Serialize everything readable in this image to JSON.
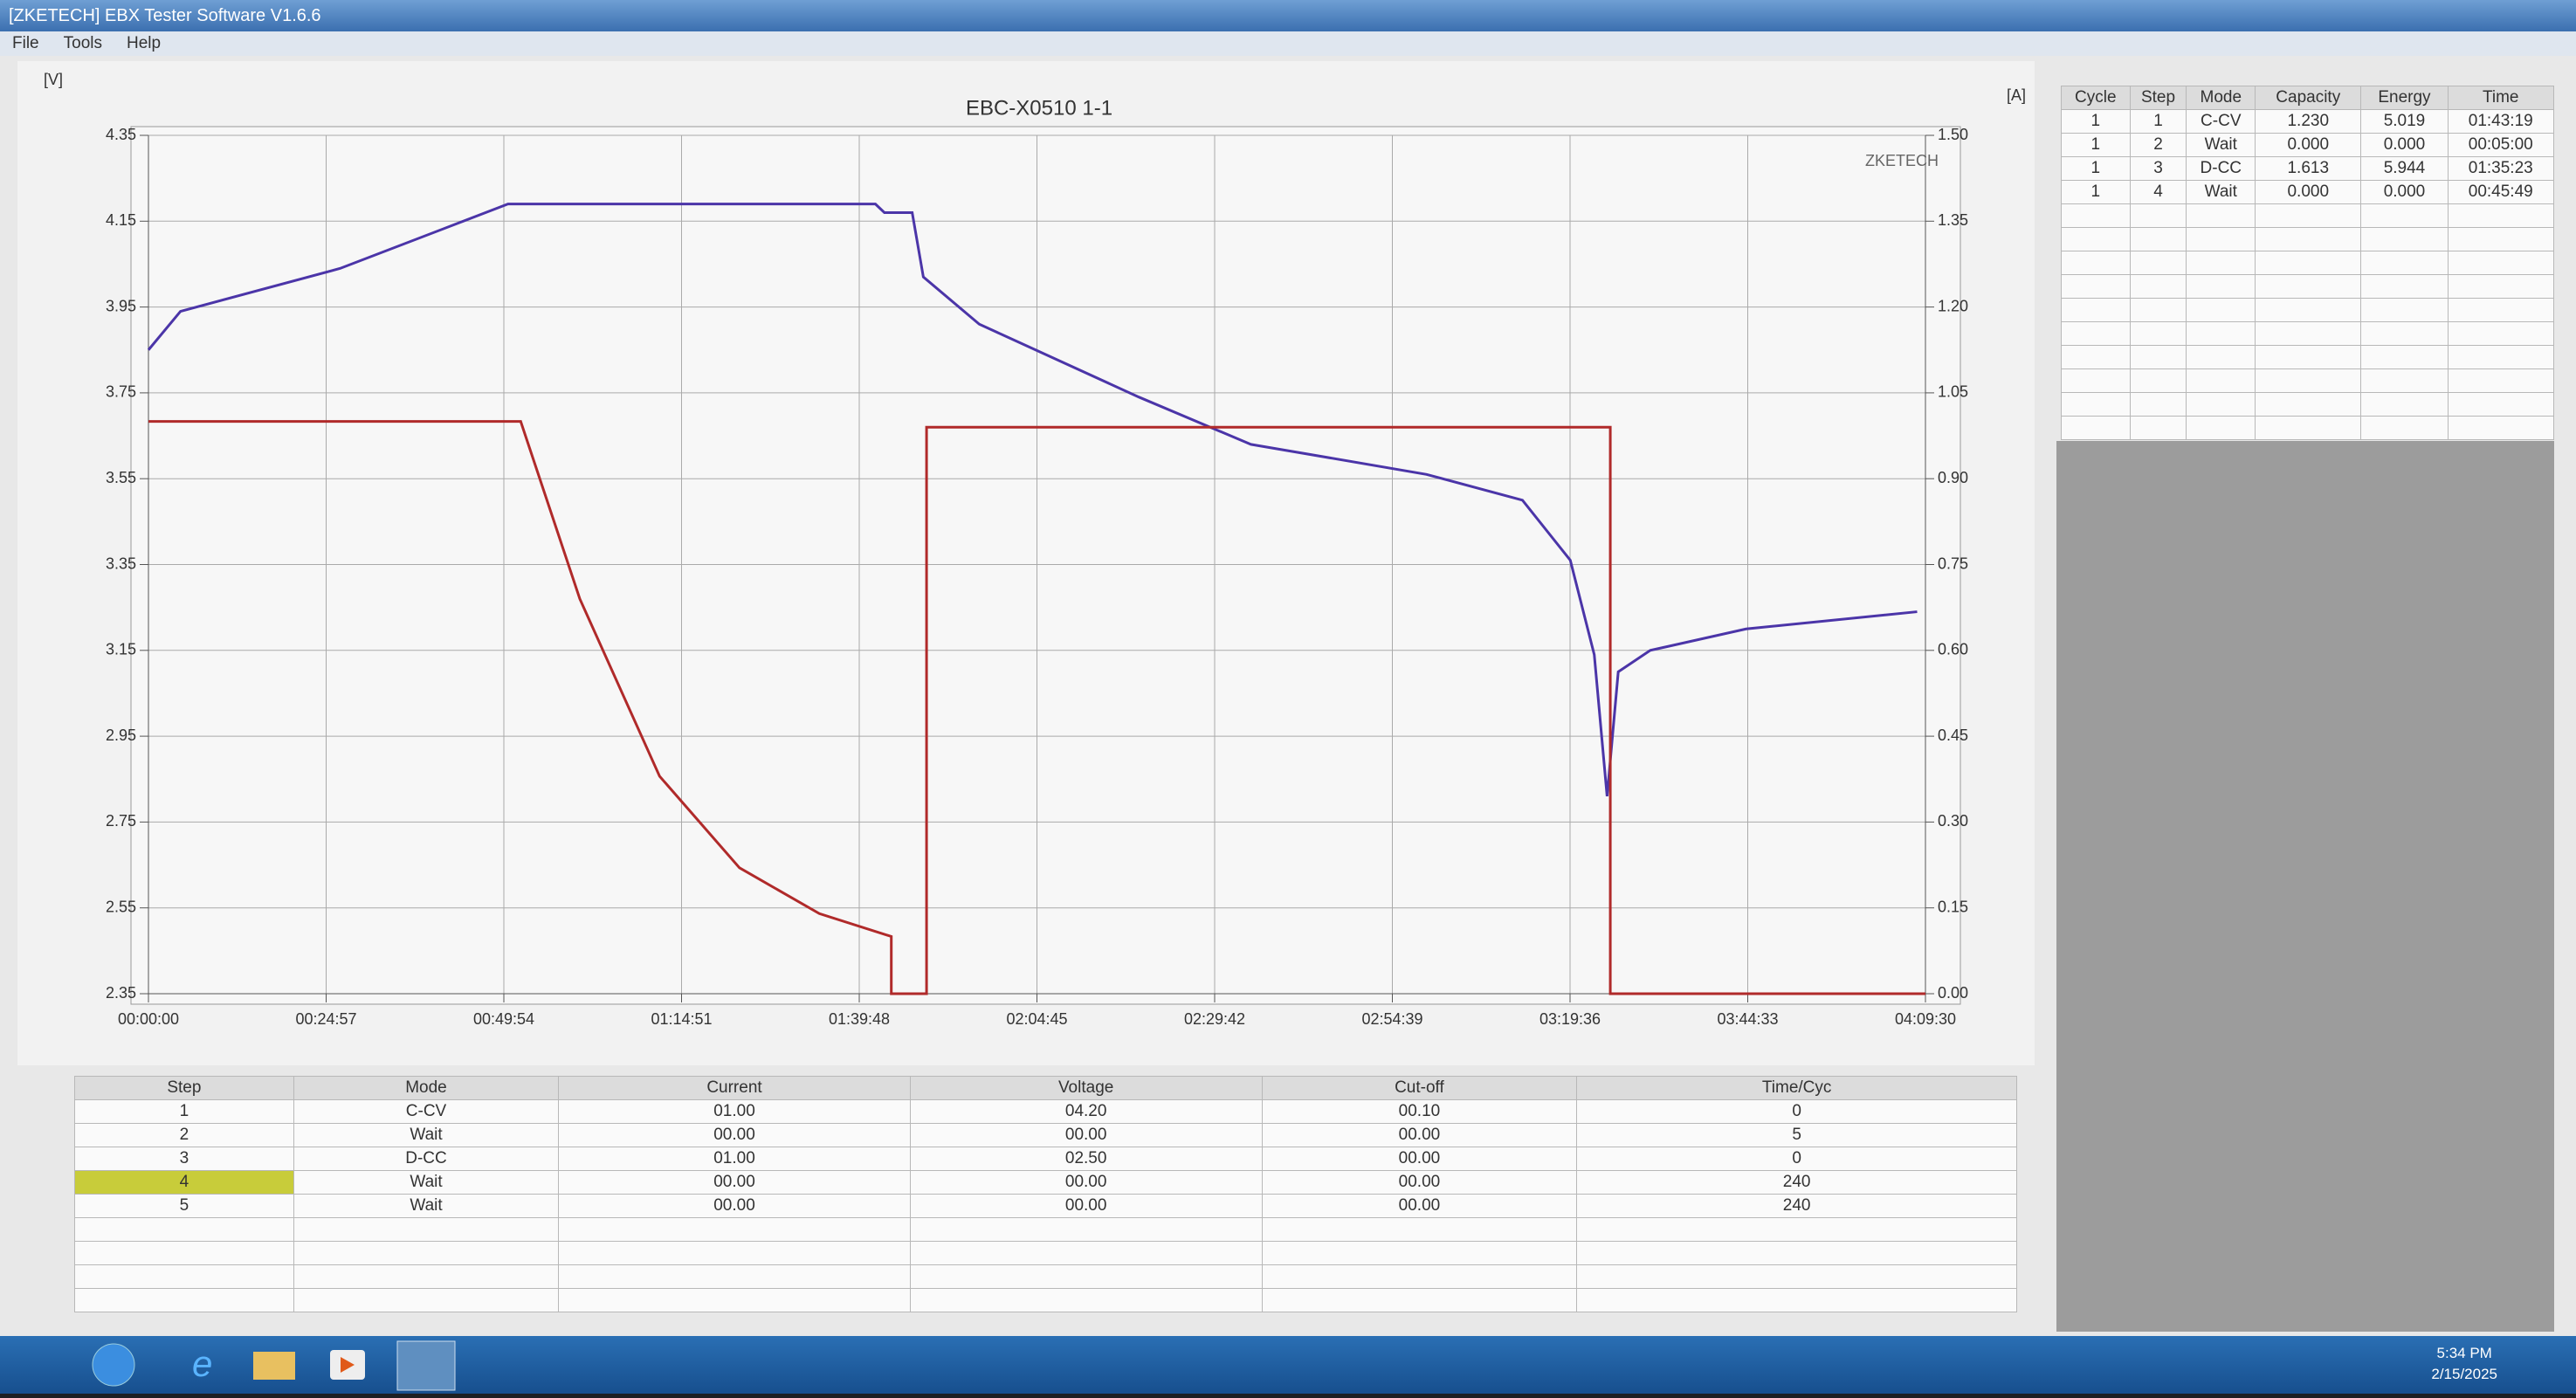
{
  "window": {
    "title": "[ZKETECH] EBX Tester Software V1.6.6",
    "menu": [
      "File",
      "Tools",
      "Help"
    ]
  },
  "chart": {
    "type": "line",
    "title": "EBC-X0510  1-1",
    "brand": "ZKETECH",
    "y_label": "[V]",
    "y2_label": "[A]",
    "xlim": [
      0,
      14970
    ],
    "xticks": [
      {
        "value": 0,
        "label": "00:00:00"
      },
      {
        "value": 1497,
        "label": "00:24:57"
      },
      {
        "value": 2994,
        "label": "00:49:54"
      },
      {
        "value": 4491,
        "label": "01:14:51"
      },
      {
        "value": 5988,
        "label": "01:39:48"
      },
      {
        "value": 7485,
        "label": "02:04:45"
      },
      {
        "value": 8982,
        "label": "02:29:42"
      },
      {
        "value": 10479,
        "label": "02:54:39"
      },
      {
        "value": 11976,
        "label": "03:19:36"
      },
      {
        "value": 13473,
        "label": "03:44:33"
      },
      {
        "value": 14970,
        "label": "04:09:30"
      }
    ],
    "ylim": [
      2.35,
      4.35
    ],
    "yticks": [
      2.35,
      2.55,
      2.75,
      2.95,
      3.15,
      3.35,
      3.55,
      3.75,
      3.95,
      4.15,
      4.35
    ],
    "y2lim": [
      0,
      1.5
    ],
    "y2ticks": [
      {
        "value": 0,
        "label": "0.00"
      },
      {
        "value": 0.15,
        "label": "0.15"
      },
      {
        "value": 0.3,
        "label": "0.30"
      },
      {
        "value": 0.45,
        "label": "0.45"
      },
      {
        "value": 0.6,
        "label": "0.60"
      },
      {
        "value": 0.75,
        "label": "0.75"
      },
      {
        "value": 0.9,
        "label": "0.90"
      },
      {
        "value": 1.05,
        "label": "1.05"
      },
      {
        "value": 1.2,
        "label": "1.20"
      },
      {
        "value": 1.35,
        "label": "1.35"
      },
      {
        "value": 1.5,
        "label": "1.50"
      }
    ],
    "grid": true,
    "series": [
      {
        "name": "Voltage",
        "color": "#4b35a8",
        "x": [
          0,
          270,
          1615,
          3029,
          6124,
          6200,
          6434,
          6528,
          6999,
          8345,
          9287,
          10767,
          11575,
          11978,
          12180,
          12288,
          12382,
          12652,
          13459,
          14900
        ],
        "values": [
          3.85,
          3.94,
          4.04,
          4.19,
          4.19,
          4.17,
          4.17,
          4.02,
          3.91,
          3.74,
          3.63,
          3.56,
          3.5,
          3.36,
          3.14,
          2.81,
          3.1,
          3.15,
          3.2,
          3.24
        ]
      },
      {
        "name": "Current",
        "color": "#b02a2a",
        "axis": "y2",
        "x": [
          0,
          3136,
          3634,
          4306,
          4979,
          5652,
          6258,
          6258,
          6555,
          6555,
          12315,
          12315,
          14970
        ],
        "values": [
          1.0,
          1.0,
          0.69,
          0.38,
          0.22,
          0.14,
          0.1,
          0,
          0,
          0.99,
          0.99,
          0,
          0
        ]
      }
    ]
  },
  "step_table": {
    "columns": [
      "Step",
      "Mode",
      "Current",
      "Voltage",
      "Cut-off",
      "Time/Cyc"
    ],
    "rows": [
      [
        "1",
        "C-CV",
        "01.00",
        "04.20",
        "00.10",
        "0"
      ],
      [
        "2",
        "Wait",
        "00.00",
        "00.00",
        "00.00",
        "5"
      ],
      [
        "3",
        "D-CC",
        "01.00",
        "02.50",
        "00.00",
        "0"
      ],
      [
        "4",
        "Wait",
        "00.00",
        "00.00",
        "00.00",
        "240"
      ],
      [
        "5",
        "Wait",
        "00.00",
        "00.00",
        "00.00",
        "240"
      ]
    ]
  },
  "result_table": {
    "columns": [
      "Cycle",
      "Step",
      "Mode",
      "Capacity",
      "Energy",
      "Time"
    ],
    "rows": [
      [
        "1",
        "1",
        "C-CV",
        "1.230",
        "5.019",
        "01:43:19"
      ],
      [
        "1",
        "2",
        "Wait",
        "0.000",
        "0.000",
        "00:05:00"
      ],
      [
        "1",
        "3",
        "D-CC",
        "1.613",
        "5.944",
        "01:35:23"
      ],
      [
        "1",
        "4",
        "Wait",
        "0.000",
        "0.000",
        "00:45:49"
      ]
    ]
  },
  "taskbar": {
    "time": "5:34 PM",
    "date": "2/15/2025"
  }
}
